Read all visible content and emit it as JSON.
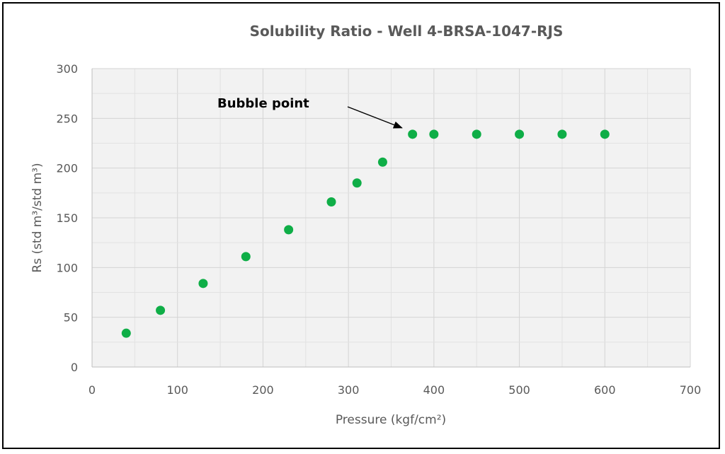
{
  "chart_data": {
    "type": "scatter",
    "title": "Solubility Ratio  - Well 4-BRSA-1047-RJS",
    "xlabel": "Pressure (kgf/cm²)",
    "ylabel": "Rs  (std m³/std m³)",
    "xlim": [
      0,
      700
    ],
    "ylim": [
      0,
      300
    ],
    "xticks": [
      0,
      100,
      200,
      300,
      400,
      500,
      600,
      700
    ],
    "yticks": [
      0,
      50,
      100,
      150,
      200,
      250,
      300
    ],
    "grid": true,
    "series": [
      {
        "color": "#0fae47",
        "x": [
          40,
          80,
          130,
          180,
          230,
          280,
          310,
          340,
          375,
          400,
          450,
          500,
          550,
          600
        ],
        "y": [
          34,
          57,
          84,
          111,
          138,
          166,
          185,
          206,
          234,
          234,
          234,
          234,
          234,
          234
        ]
      }
    ],
    "annotations": [
      {
        "text": "Bubble point",
        "target_x": 375,
        "target_y": 234
      }
    ]
  }
}
